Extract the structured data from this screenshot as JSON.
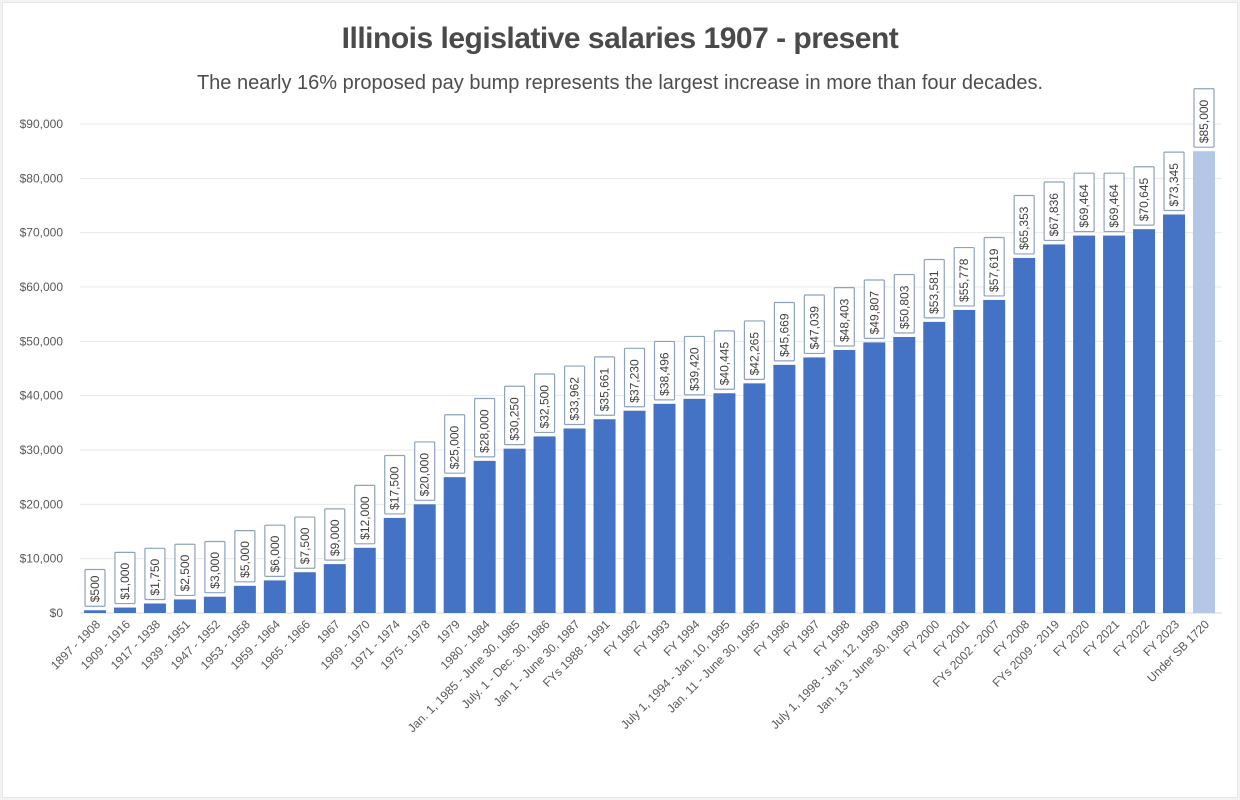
{
  "chart_data": {
    "type": "bar",
    "title": "Illinois legislative salaries 1907 - present",
    "subtitle": "The nearly 16% proposed pay bump represents the largest increase in more than four decades.",
    "xlabel": "",
    "ylabel": "",
    "ylim": [
      0,
      90000
    ],
    "yticks": [
      0,
      10000,
      20000,
      30000,
      40000,
      50000,
      60000,
      70000,
      80000,
      90000
    ],
    "ytick_labels": [
      "$0",
      "$10,000",
      "$20,000",
      "$30,000",
      "$40,000",
      "$50,000",
      "$60,000",
      "$70,000",
      "$80,000",
      "$90,000"
    ],
    "grid": true,
    "legend": "none",
    "bar_color": "#4472c4",
    "highlight_color": "#b4c7e7",
    "highlight_index": 37,
    "categories": [
      "1897 - 1908",
      "1909 - 1916",
      "1917 - 1938",
      "1939 - 1951",
      "1947 - 1952",
      "1953 - 1958",
      "1959 - 1964",
      "1965 - 1966",
      "1967",
      "1969 - 1970",
      "1971 - 1974",
      "1975 - 1978",
      "1979",
      "1980 - 1984",
      "Jan. 1, 1985 - June 30, 1985",
      "July. 1 - Dec. 30, 1986",
      "Jan 1 - June 30, 1987",
      "FYs 1988 - 1991",
      "FY 1992",
      "FY 1993",
      "FY 1994",
      "July 1, 1994 - Jan. 10, 1995",
      "Jan. 11 - June 30, 1995",
      "FY 1996",
      "FY 1997",
      "FY 1998",
      "July 1, 1998 - Jan. 12, 1999",
      "Jan. 13 - June 30, 1999",
      "FY 2000",
      "FY 2001",
      "FYs 2002 - 2007",
      "FY 2008",
      "FYs 2009 - 2019",
      "FY 2020",
      "FY 2021",
      "FY 2022",
      "FY 2023",
      "Under SB 1720"
    ],
    "values": [
      500,
      1000,
      1750,
      2500,
      3000,
      5000,
      6000,
      7500,
      9000,
      12000,
      17500,
      20000,
      25000,
      28000,
      30250,
      32500,
      33962,
      35661,
      37230,
      38496,
      39420,
      40445,
      42265,
      45669,
      47039,
      48403,
      49807,
      50803,
      53581,
      55778,
      57619,
      65353,
      67836,
      69464,
      69464,
      70645,
      73345,
      85000
    ],
    "data_labels": [
      "$500",
      "$1,000",
      "$1,750",
      "$2,500",
      "$3,000",
      "$5,000",
      "$6,000",
      "$7,500",
      "$9,000",
      "$12,000",
      "$17,500",
      "$20,000",
      "$25,000",
      "$28,000",
      "$30,250",
      "$32,500",
      "$33,962",
      "$35,661",
      "$37,230",
      "$38,496",
      "$39,420",
      "$40,445",
      "$42,265",
      "$45,669",
      "$47,039",
      "$48,403",
      "$49,807",
      "$50,803",
      "$53,581",
      "$55,778",
      "$57,619",
      "$65,353",
      "$67,836",
      "$69,464",
      "$69,464",
      "$70,645",
      "$73,345",
      "$85,000"
    ]
  }
}
